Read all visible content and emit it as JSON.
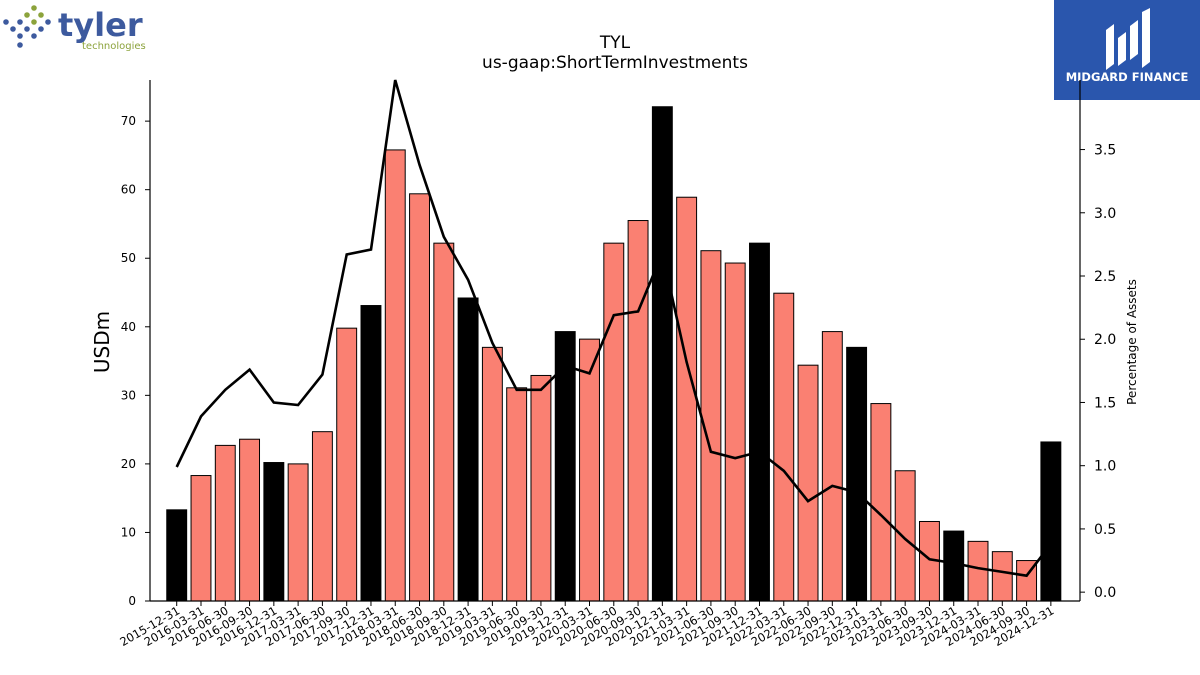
{
  "logos": {
    "left": {
      "wordmark": "tyler",
      "sub": "technologies",
      "color": "#3d5a9e",
      "accent": "#8ca33c"
    },
    "right": {
      "text": "MIDGARD FINANCE",
      "background": "#2a56ad"
    }
  },
  "chart_data": {
    "type": "bar",
    "title": "TYL",
    "subtitle": "us-gaap:ShortTermInvestments",
    "ylabel": "USDm",
    "y2label": "Percentage of Assets",
    "ylim": [
      0,
      76
    ],
    "y2lim": [
      -0.07,
      4.05
    ],
    "yticks": [
      0,
      10,
      20,
      30,
      40,
      50,
      60,
      70
    ],
    "y2ticks": [
      "0.0",
      "0.5",
      "1.0",
      "1.5",
      "2.0",
      "2.5",
      "3.0",
      "3.5"
    ],
    "grid": false,
    "colors": {
      "quarter": "#fa8072",
      "year_end": "#000000",
      "line": "#000000"
    },
    "categories": [
      "2015-12-31",
      "2016-03-31",
      "2016-06-30",
      "2016-09-30",
      "2016-12-31",
      "2017-03-31",
      "2017-06-30",
      "2017-09-30",
      "2017-12-31",
      "2018-03-31",
      "2018-06-30",
      "2018-09-30",
      "2018-12-31",
      "2019-03-31",
      "2019-06-30",
      "2019-09-30",
      "2019-12-31",
      "2020-03-31",
      "2020-06-30",
      "2020-09-30",
      "2020-12-31",
      "2021-03-31",
      "2021-06-30",
      "2021-09-30",
      "2021-12-31",
      "2022-03-31",
      "2022-06-30",
      "2022-09-30",
      "2022-12-31",
      "2023-03-31",
      "2023-06-30",
      "2023-09-30",
      "2023-12-31",
      "2024-03-31",
      "2024-06-30",
      "2024-09-30",
      "2024-12-31"
    ],
    "series": [
      {
        "name": "",
        "kind": "bar",
        "values": [
          13.3,
          18.3,
          22.7,
          23.6,
          20.2,
          20.0,
          24.7,
          39.8,
          43.1,
          65.8,
          59.4,
          52.2,
          44.2,
          37.0,
          31.1,
          32.9,
          39.3,
          38.2,
          52.2,
          55.5,
          72.1,
          58.9,
          51.1,
          49.3,
          52.2,
          44.9,
          34.4,
          39.3,
          37.0,
          28.8,
          19.0,
          11.6,
          10.2,
          8.7,
          7.2,
          5.9,
          23.2
        ]
      },
      {
        "name": "",
        "kind": "line",
        "axis": "y2",
        "values": [
          0.99,
          1.39,
          1.6,
          1.76,
          1.5,
          1.48,
          1.72,
          2.67,
          2.71,
          4.05,
          3.38,
          2.81,
          2.47,
          1.97,
          1.6,
          1.6,
          1.79,
          1.73,
          2.19,
          2.22,
          2.68,
          1.82,
          1.11,
          1.06,
          1.11,
          0.96,
          0.72,
          0.84,
          0.79,
          0.61,
          0.42,
          0.26,
          0.23,
          0.19,
          0.16,
          0.13,
          0.38
        ]
      }
    ]
  }
}
